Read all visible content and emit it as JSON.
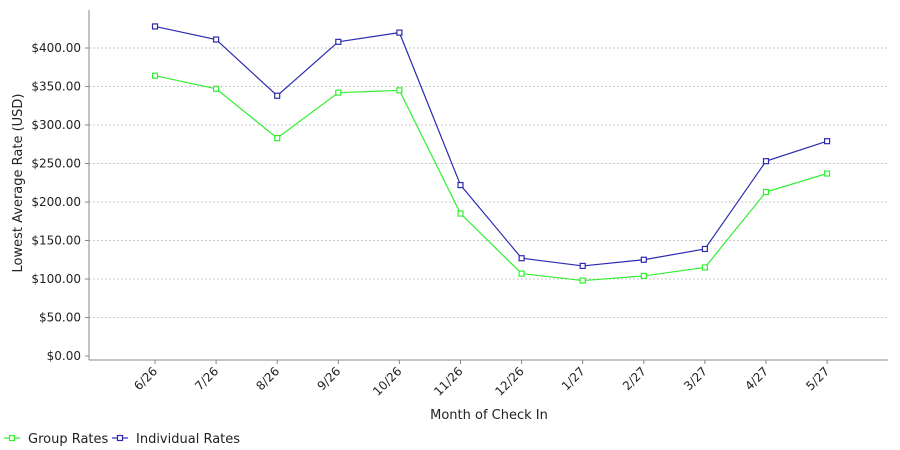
{
  "chart_data": {
    "type": "line",
    "title": "",
    "xlabel": "Month of Check In",
    "ylabel": "Lowest Average Rate (USD)",
    "categories": [
      "6/26",
      "7/26",
      "8/26",
      "9/26",
      "10/26",
      "11/26",
      "12/26",
      "1/27",
      "2/27",
      "3/27",
      "4/27",
      "5/27"
    ],
    "ylim": [
      0,
      400
    ],
    "y_ticks": [
      0,
      50,
      100,
      150,
      200,
      250,
      300,
      350,
      400
    ],
    "y_tick_labels": [
      "$0.00",
      "$50.00",
      "$100.00",
      "$150.00",
      "$200.00",
      "$250.00",
      "$300.00",
      "$350.00",
      "$400.00"
    ],
    "grid": true,
    "legend_position": "bottom-left",
    "series": [
      {
        "name": "Group Rates",
        "color": "#33ee33",
        "values": [
          364,
          347,
          283,
          342,
          345,
          185,
          107,
          98,
          104,
          115,
          213,
          237
        ]
      },
      {
        "name": "Individual Rates",
        "color": "#2b2bb0",
        "values": [
          428,
          411,
          338,
          408,
          420,
          222,
          127,
          117,
          125,
          139,
          253,
          279
        ]
      }
    ]
  }
}
